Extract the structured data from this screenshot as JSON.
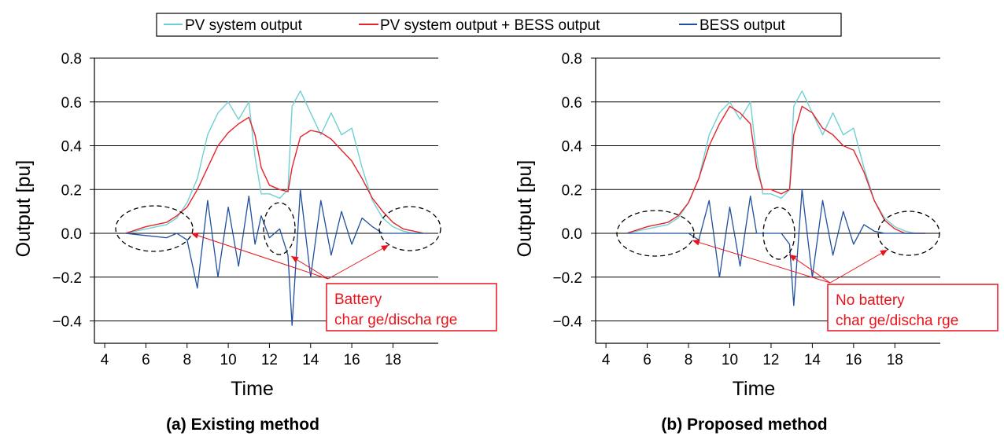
{
  "colors": {
    "pv": "#6fd0d4",
    "combined": "#e3242b",
    "bess": "#1f4f9e",
    "annotation": "#e8141b"
  },
  "legend": [
    {
      "name": "PV system output",
      "color": "#6fd0d4"
    },
    {
      "name": "PV system output + BESS output",
      "color": "#e3242b"
    },
    {
      "name": "BESS output",
      "color": "#1f4f9e"
    }
  ],
  "chart_data": [
    {
      "type": "line",
      "caption": "(a) Existing method",
      "xlabel": "Time",
      "ylabel": "Output [pu]",
      "xlim": [
        3.5,
        20.2
      ],
      "ylim": [
        -0.5,
        0.8
      ],
      "xticks": [
        4,
        6,
        8,
        10,
        12,
        14,
        16,
        18
      ],
      "xtick_labels": [
        "4",
        "6",
        "8",
        "10",
        "12",
        "14",
        "16",
        "18"
      ],
      "yticks": [
        -0.4,
        -0.2,
        0.0,
        0.2,
        0.4,
        0.6,
        0.8
      ],
      "ytick_labels": [
        "−0.4",
        "−0.2",
        "0.0",
        "0.2",
        "0.4",
        "0.6",
        "0.8"
      ],
      "grid": "horizontal",
      "annotation": {
        "lines": [
          "Battery",
          "char ge/discha rge"
        ]
      },
      "series": [
        {
          "name": "PV system output",
          "x": [
            5,
            6,
            7,
            7.5,
            8,
            8.5,
            9,
            9.5,
            10,
            10.5,
            11,
            11.3,
            11.6,
            12,
            12.5,
            12.9,
            13.1,
            13.5,
            14,
            14.5,
            15,
            15.5,
            16,
            16.5,
            17,
            17.5,
            18,
            18.5,
            19,
            19.5
          ],
          "y": [
            0.0,
            0.02,
            0.04,
            0.07,
            0.14,
            0.25,
            0.45,
            0.55,
            0.6,
            0.52,
            0.6,
            0.35,
            0.18,
            0.18,
            0.16,
            0.2,
            0.58,
            0.65,
            0.55,
            0.45,
            0.55,
            0.45,
            0.48,
            0.3,
            0.15,
            0.07,
            0.03,
            0.01,
            0.0,
            0.0
          ]
        },
        {
          "name": "PV system output + BESS output",
          "x": [
            5,
            6,
            7,
            7.5,
            8,
            8.5,
            9,
            9.5,
            10,
            10.5,
            11,
            11.3,
            11.6,
            12,
            12.5,
            12.9,
            13.1,
            13.5,
            14,
            14.5,
            15,
            15.5,
            16,
            16.5,
            17,
            17.5,
            18,
            18.5,
            19,
            19.5
          ],
          "y": [
            0.0,
            0.03,
            0.05,
            0.08,
            0.12,
            0.2,
            0.3,
            0.4,
            0.46,
            0.5,
            0.53,
            0.45,
            0.3,
            0.22,
            0.2,
            0.19,
            0.3,
            0.44,
            0.47,
            0.46,
            0.43,
            0.38,
            0.33,
            0.25,
            0.16,
            0.1,
            0.05,
            0.02,
            0.01,
            0.0
          ]
        },
        {
          "name": "BESS output",
          "x": [
            5,
            6,
            7,
            7.5,
            8,
            8.5,
            9,
            9.5,
            10,
            10.5,
            11,
            11.3,
            11.6,
            12,
            12.5,
            12.9,
            13.1,
            13.5,
            14,
            14.5,
            15,
            15.5,
            16,
            16.5,
            17,
            17.5,
            18,
            18.5,
            19,
            19.5
          ],
          "y": [
            0.0,
            -0.01,
            -0.02,
            0.0,
            -0.03,
            -0.25,
            0.15,
            -0.2,
            0.12,
            -0.15,
            0.17,
            -0.05,
            0.08,
            -0.02,
            0.02,
            -0.1,
            -0.42,
            0.2,
            -0.2,
            0.15,
            -0.1,
            0.1,
            -0.05,
            0.07,
            0.03,
            0.0,
            0.0,
            0.0,
            0.0,
            0.0
          ]
        }
      ]
    },
    {
      "type": "line",
      "caption": "(b) Proposed method",
      "xlabel": "Time",
      "ylabel": "Output [pu]",
      "xlim": [
        3.5,
        20.2
      ],
      "ylim": [
        -0.5,
        0.8
      ],
      "xticks": [
        4,
        6,
        8,
        10,
        12,
        14,
        16,
        18
      ],
      "xtick_labels": [
        "4",
        "6",
        "8",
        "10",
        "12",
        "14",
        "16",
        "18"
      ],
      "yticks": [
        -0.4,
        -0.2,
        0.0,
        0.2,
        0.4,
        0.6,
        0.8
      ],
      "ytick_labels": [
        "−0.4",
        "−0.2",
        "0.0",
        "0.2",
        "0.4",
        "0.6",
        "0.8"
      ],
      "grid": "horizontal",
      "annotation": {
        "lines": [
          "No battery",
          "char ge/discha rge"
        ]
      },
      "series": [
        {
          "name": "PV system output",
          "x": [
            5,
            6,
            7,
            7.5,
            8,
            8.5,
            9,
            9.5,
            10,
            10.5,
            11,
            11.3,
            11.6,
            12,
            12.5,
            12.9,
            13.1,
            13.5,
            14,
            14.5,
            15,
            15.5,
            16,
            16.5,
            17,
            17.5,
            18,
            18.5,
            19,
            19.5
          ],
          "y": [
            0.0,
            0.02,
            0.04,
            0.07,
            0.14,
            0.25,
            0.45,
            0.55,
            0.6,
            0.52,
            0.6,
            0.35,
            0.18,
            0.18,
            0.16,
            0.2,
            0.58,
            0.65,
            0.55,
            0.45,
            0.55,
            0.45,
            0.48,
            0.3,
            0.15,
            0.07,
            0.03,
            0.01,
            0.0,
            0.0
          ]
        },
        {
          "name": "PV system output + BESS output",
          "x": [
            5,
            6,
            7,
            7.5,
            8,
            8.5,
            9,
            9.5,
            10,
            10.5,
            11,
            11.3,
            11.6,
            12,
            12.5,
            12.9,
            13.1,
            13.5,
            14,
            14.5,
            15,
            15.5,
            16,
            16.5,
            17,
            17.5,
            18,
            18.5,
            19,
            19.5
          ],
          "y": [
            0.0,
            0.03,
            0.05,
            0.08,
            0.14,
            0.25,
            0.4,
            0.5,
            0.58,
            0.55,
            0.5,
            0.3,
            0.2,
            0.2,
            0.18,
            0.2,
            0.45,
            0.58,
            0.55,
            0.48,
            0.45,
            0.4,
            0.38,
            0.28,
            0.15,
            0.06,
            0.02,
            0.0,
            0.0,
            0.0
          ]
        },
        {
          "name": "BESS output",
          "x": [
            5,
            6,
            7,
            7.5,
            8,
            8.5,
            9,
            9.5,
            10,
            10.5,
            11,
            11.3,
            11.6,
            12,
            12.5,
            12.9,
            13.1,
            13.5,
            14,
            14.5,
            15,
            15.5,
            16,
            16.5,
            17,
            17.5,
            18,
            18.5,
            19,
            19.5
          ],
          "y": [
            0.0,
            0.0,
            0.0,
            0.0,
            0.0,
            -0.03,
            0.15,
            -0.2,
            0.12,
            -0.15,
            0.17,
            0.0,
            0.0,
            0.0,
            0.0,
            -0.05,
            -0.33,
            0.2,
            -0.2,
            0.15,
            -0.1,
            0.1,
            -0.05,
            0.04,
            0.01,
            0.0,
            0.0,
            0.0,
            0.0,
            0.0
          ]
        }
      ]
    }
  ]
}
